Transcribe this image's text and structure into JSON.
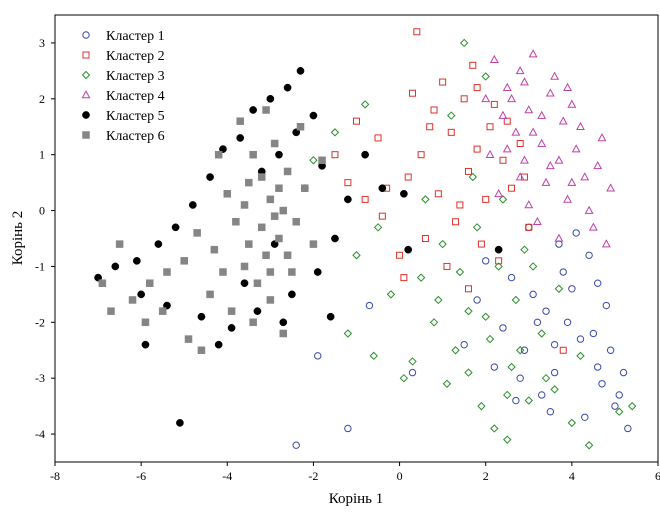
{
  "chart_data": {
    "type": "scatter",
    "xlabel": "Корінь 1",
    "ylabel": "Корінь 2",
    "xlim": [
      -8,
      6
    ],
    "ylim": [
      -4.5,
      3.5
    ],
    "xticks": [
      "-8",
      "-6",
      "-4",
      "-2",
      "0",
      "2",
      "4",
      "6"
    ],
    "yticks": [
      "-4",
      "-3",
      "-2",
      "-1",
      "0",
      "1",
      "2",
      "3"
    ],
    "grid": false,
    "legend_position": "top-left",
    "series": [
      {
        "name": "Кластер 1",
        "marker": "open-circle",
        "color": "#3a4aa8",
        "points": [
          [
            3.1,
            -1.5
          ],
          [
            3.8,
            -1.1
          ],
          [
            4.2,
            -2.3
          ],
          [
            4.6,
            -2.8
          ],
          [
            5.0,
            -3.5
          ],
          [
            5.3,
            -3.9
          ],
          [
            4.1,
            -0.4
          ],
          [
            3.6,
            -2.9
          ],
          [
            2.9,
            -2.5
          ],
          [
            4.8,
            -1.7
          ],
          [
            3.3,
            -3.3
          ],
          [
            2.2,
            -2.8
          ],
          [
            1.8,
            -1.6
          ],
          [
            4.4,
            -0.8
          ],
          [
            3.9,
            -2.0
          ],
          [
            2.6,
            -1.2
          ],
          [
            4.9,
            -2.5
          ],
          [
            3.5,
            -3.6
          ],
          [
            2.4,
            -2.1
          ],
          [
            4.7,
            -3.1
          ],
          [
            5.2,
            -2.9
          ],
          [
            -0.7,
            -1.7
          ],
          [
            -1.2,
            -3.9
          ],
          [
            -1.9,
            -2.6
          ],
          [
            -2.4,
            -4.2
          ],
          [
            0.3,
            -2.9
          ],
          [
            3.0,
            -0.3
          ],
          [
            3.7,
            -0.6
          ],
          [
            4.0,
            -1.4
          ],
          [
            2.8,
            -3.0
          ],
          [
            1.5,
            -2.4
          ],
          [
            3.2,
            -2.0
          ],
          [
            4.5,
            -2.2
          ],
          [
            5.1,
            -3.3
          ],
          [
            2.0,
            -0.9
          ],
          [
            3.4,
            -1.8
          ],
          [
            4.3,
            -3.7
          ],
          [
            2.7,
            -3.4
          ],
          [
            3.6,
            -2.4
          ],
          [
            4.6,
            -1.3
          ]
        ]
      },
      {
        "name": "Кластер 2",
        "marker": "open-square",
        "color": "#e0302c",
        "points": [
          [
            0.4,
            3.2
          ],
          [
            1.0,
            2.3
          ],
          [
            1.5,
            2.0
          ],
          [
            0.8,
            1.8
          ],
          [
            1.2,
            1.4
          ],
          [
            1.8,
            1.1
          ],
          [
            0.5,
            1.0
          ],
          [
            0.2,
            0.6
          ],
          [
            -0.3,
            0.4
          ],
          [
            -0.8,
            0.2
          ],
          [
            -1.2,
            0.5
          ],
          [
            0.9,
            0.3
          ],
          [
            1.6,
            0.7
          ],
          [
            2.1,
            1.5
          ],
          [
            2.4,
            0.9
          ],
          [
            2.0,
            0.2
          ],
          [
            1.3,
            -0.2
          ],
          [
            0.6,
            -0.5
          ],
          [
            1.9,
            -0.6
          ],
          [
            2.6,
            0.4
          ],
          [
            2.2,
            1.9
          ],
          [
            1.7,
            2.6
          ],
          [
            0.3,
            2.1
          ],
          [
            -0.5,
            1.3
          ],
          [
            -1.5,
            1.0
          ],
          [
            1.1,
            -1.0
          ],
          [
            0.1,
            -1.2
          ],
          [
            2.8,
            1.2
          ],
          [
            3.0,
            -0.3
          ],
          [
            3.8,
            -2.5
          ],
          [
            1.4,
            0.1
          ],
          [
            0.7,
            1.5
          ],
          [
            1.6,
            -1.4
          ],
          [
            2.3,
            -0.9
          ],
          [
            2.9,
            0.6
          ],
          [
            -1.0,
            1.6
          ],
          [
            0.0,
            -0.8
          ],
          [
            -0.4,
            -0.1
          ],
          [
            1.8,
            2.2
          ],
          [
            2.5,
            1.6
          ]
        ]
      },
      {
        "name": "Кластер 3",
        "marker": "open-diamond",
        "color": "#2c8f2c",
        "points": [
          [
            1.5,
            3.0
          ],
          [
            2.0,
            2.4
          ],
          [
            1.2,
            1.7
          ],
          [
            -0.8,
            1.9
          ],
          [
            -1.5,
            1.4
          ],
          [
            -2.0,
            0.9
          ],
          [
            -1.0,
            -0.8
          ],
          [
            -0.2,
            -1.5
          ],
          [
            0.5,
            -1.2
          ],
          [
            1.0,
            -0.6
          ],
          [
            1.6,
            -1.8
          ],
          [
            2.1,
            -2.3
          ],
          [
            2.6,
            -2.8
          ],
          [
            3.0,
            -3.4
          ],
          [
            2.5,
            -4.1
          ],
          [
            3.4,
            -3.0
          ],
          [
            4.0,
            -3.8
          ],
          [
            4.4,
            -4.2
          ],
          [
            5.1,
            -3.6
          ],
          [
            5.4,
            -3.5
          ],
          [
            1.8,
            -0.3
          ],
          [
            2.3,
            -1.0
          ],
          [
            1.3,
            -2.5
          ],
          [
            0.8,
            -2.0
          ],
          [
            0.3,
            -2.7
          ],
          [
            1.1,
            -3.1
          ],
          [
            1.9,
            -3.5
          ],
          [
            2.7,
            -1.6
          ],
          [
            3.3,
            -2.2
          ],
          [
            3.7,
            -1.4
          ],
          [
            2.9,
            -0.7
          ],
          [
            2.4,
            0.2
          ],
          [
            1.7,
            0.6
          ],
          [
            0.6,
            0.2
          ],
          [
            -0.5,
            -0.3
          ],
          [
            -1.2,
            -2.2
          ],
          [
            -0.6,
            -2.6
          ],
          [
            0.1,
            -3.0
          ],
          [
            2.2,
            -3.9
          ],
          [
            3.6,
            -3.2
          ],
          [
            4.2,
            -2.6
          ],
          [
            1.4,
            -1.1
          ],
          [
            2.0,
            -1.9
          ],
          [
            2.8,
            -2.5
          ],
          [
            3.1,
            -1.0
          ],
          [
            0.9,
            -1.6
          ],
          [
            1.6,
            -2.9
          ],
          [
            2.5,
            -3.3
          ]
        ]
      },
      {
        "name": "Кластер 4",
        "marker": "open-triangle",
        "color": "#c040a8",
        "points": [
          [
            2.2,
            2.7
          ],
          [
            2.8,
            2.5
          ],
          [
            3.1,
            2.8
          ],
          [
            2.5,
            2.2
          ],
          [
            3.5,
            2.1
          ],
          [
            3.0,
            1.8
          ],
          [
            2.7,
            1.4
          ],
          [
            3.3,
            1.2
          ],
          [
            3.8,
            1.6
          ],
          [
            4.1,
            1.1
          ],
          [
            4.3,
            0.6
          ],
          [
            4.6,
            0.8
          ],
          [
            4.9,
            0.4
          ],
          [
            3.9,
            0.2
          ],
          [
            3.4,
            0.5
          ],
          [
            2.9,
            0.9
          ],
          [
            2.4,
            1.7
          ],
          [
            2.1,
            1.0
          ],
          [
            3.2,
            -0.2
          ],
          [
            3.7,
            -0.5
          ],
          [
            4.4,
            0.0
          ],
          [
            4.0,
            1.9
          ],
          [
            3.6,
            2.4
          ],
          [
            2.6,
            2.0
          ],
          [
            2.3,
            0.3
          ],
          [
            3.0,
            0.1
          ],
          [
            4.7,
            1.3
          ],
          [
            4.2,
            1.5
          ],
          [
            3.9,
            2.2
          ],
          [
            2.0,
            2.0
          ],
          [
            3.5,
            0.8
          ],
          [
            2.8,
            0.6
          ],
          [
            4.5,
            -0.3
          ],
          [
            4.8,
            -0.6
          ],
          [
            3.3,
            1.7
          ],
          [
            2.5,
            1.1
          ],
          [
            4.0,
            0.5
          ],
          [
            3.1,
            1.4
          ],
          [
            3.7,
            0.9
          ],
          [
            2.9,
            2.3
          ]
        ]
      },
      {
        "name": "Кластер 5",
        "marker": "filled-circle",
        "color": "#000000",
        "points": [
          [
            -2.3,
            2.5
          ],
          [
            -2.6,
            2.2
          ],
          [
            -3.0,
            2.0
          ],
          [
            -3.4,
            1.8
          ],
          [
            -2.0,
            1.7
          ],
          [
            -2.4,
            1.4
          ],
          [
            -3.7,
            1.3
          ],
          [
            -4.1,
            1.1
          ],
          [
            -2.8,
            1.0
          ],
          [
            -3.2,
            0.7
          ],
          [
            -1.8,
            0.8
          ],
          [
            -2.2,
            0.4
          ],
          [
            -4.4,
            0.6
          ],
          [
            -4.8,
            0.1
          ],
          [
            -5.2,
            -0.3
          ],
          [
            -5.6,
            -0.6
          ],
          [
            -6.1,
            -0.9
          ],
          [
            -6.6,
            -1.0
          ],
          [
            -7.0,
            -1.2
          ],
          [
            -6.0,
            -1.5
          ],
          [
            -5.4,
            -1.7
          ],
          [
            -4.6,
            -1.9
          ],
          [
            -3.9,
            -2.1
          ],
          [
            -3.3,
            -1.8
          ],
          [
            -2.5,
            -1.5
          ],
          [
            -1.9,
            -1.1
          ],
          [
            -1.5,
            -0.5
          ],
          [
            -1.2,
            0.2
          ],
          [
            -0.8,
            1.0
          ],
          [
            -0.4,
            0.4
          ],
          [
            0.1,
            0.3
          ],
          [
            0.2,
            -0.7
          ],
          [
            -5.9,
            -2.4
          ],
          [
            -4.2,
            -2.4
          ],
          [
            -3.6,
            -1.3
          ],
          [
            -2.9,
            -0.6
          ],
          [
            -2.7,
            -2.0
          ],
          [
            -1.6,
            -1.9
          ],
          [
            -5.1,
            -3.8
          ],
          [
            2.3,
            -0.7
          ]
        ]
      },
      {
        "name": "Кластер 6",
        "marker": "filled-square",
        "color": "#858585",
        "points": [
          [
            -3.0,
            0.2
          ],
          [
            -3.2,
            -0.3
          ],
          [
            -2.8,
            -0.5
          ],
          [
            -3.5,
            0.5
          ],
          [
            -2.6,
            0.7
          ],
          [
            -3.8,
            -0.2
          ],
          [
            -3.1,
            -0.8
          ],
          [
            -2.7,
            0.0
          ],
          [
            -3.4,
            1.0
          ],
          [
            -2.9,
            1.2
          ],
          [
            -3.6,
            -1.0
          ],
          [
            -4.0,
            0.3
          ],
          [
            -2.4,
            -0.2
          ],
          [
            -3.3,
            -1.3
          ],
          [
            -4.3,
            -0.7
          ],
          [
            -4.7,
            -0.4
          ],
          [
            -5.0,
            -0.9
          ],
          [
            -5.4,
            -1.1
          ],
          [
            -5.8,
            -1.3
          ],
          [
            -6.2,
            -1.6
          ],
          [
            -6.7,
            -1.8
          ],
          [
            -6.9,
            -1.3
          ],
          [
            -6.5,
            -0.6
          ],
          [
            -5.9,
            -2.0
          ],
          [
            -5.5,
            -1.8
          ],
          [
            -4.9,
            -2.3
          ],
          [
            -4.4,
            -1.5
          ],
          [
            -3.9,
            -1.8
          ],
          [
            -3.0,
            -1.6
          ],
          [
            -2.5,
            -1.1
          ],
          [
            -2.2,
            0.4
          ],
          [
            -2.0,
            -0.6
          ],
          [
            -1.8,
            0.9
          ],
          [
            -2.3,
            1.5
          ],
          [
            -3.7,
            1.6
          ],
          [
            -4.2,
            1.0
          ],
          [
            -3.1,
            1.8
          ],
          [
            -2.7,
            -2.2
          ],
          [
            -3.4,
            -2.0
          ],
          [
            -4.6,
            -2.5
          ],
          [
            -3.0,
            -1.1
          ],
          [
            -2.6,
            -0.8
          ],
          [
            -3.6,
            0.1
          ],
          [
            -3.2,
            0.6
          ],
          [
            -2.9,
            -0.1
          ],
          [
            -3.5,
            -0.6
          ],
          [
            -4.1,
            -1.1
          ],
          [
            -2.8,
            0.4
          ]
        ]
      }
    ]
  }
}
